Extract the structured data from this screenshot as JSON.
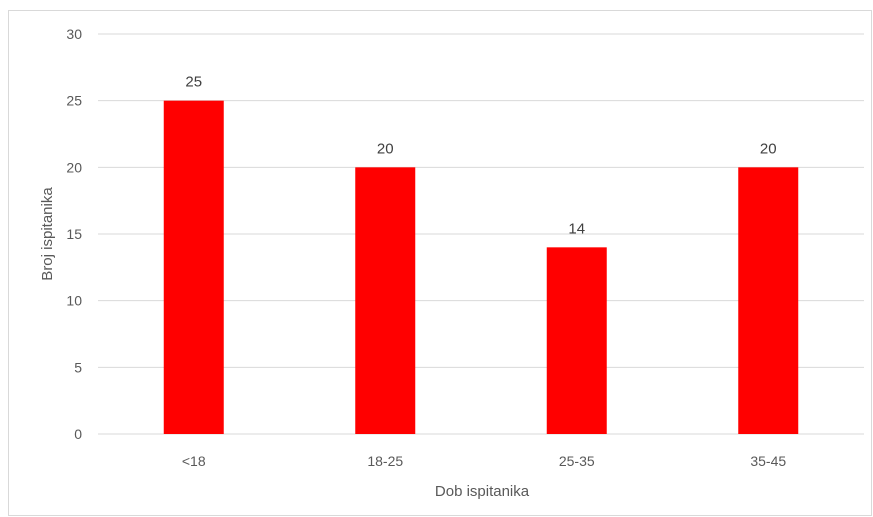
{
  "chart_data": {
    "type": "bar",
    "categories": [
      "<18",
      "18-25",
      "25-35",
      "35-45"
    ],
    "values": [
      25,
      20,
      14,
      20
    ],
    "data_labels": [
      "25",
      "20",
      "14",
      "20"
    ],
    "title": "",
    "xlabel": "Dob ispitanika",
    "ylabel": "Broj ispitanika",
    "ylim": [
      0,
      30
    ],
    "yticks": [
      0,
      5,
      10,
      15,
      20,
      25,
      30
    ],
    "ytick_labels": [
      "0",
      "5",
      "10",
      "15",
      "20",
      "25",
      "30"
    ],
    "grid": true,
    "legend": "none",
    "bar_color": "#ff0000",
    "grid_color": "#d9d9d9"
  }
}
